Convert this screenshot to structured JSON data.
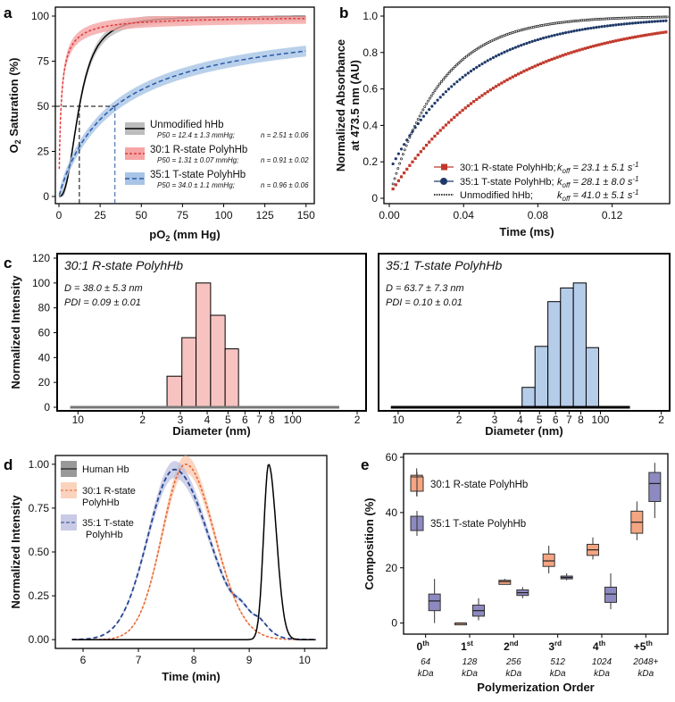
{
  "chart_data": [
    {
      "panel": "a",
      "type": "line",
      "xlabel": "pO2 (mm Hg)",
      "ylabel": "O2 Saturation (%)",
      "xlim": [
        0,
        155
      ],
      "ylim": [
        0,
        100
      ],
      "xticks": [
        0,
        25,
        50,
        75,
        100,
        125,
        150
      ],
      "yticks": [
        0,
        25,
        50,
        75,
        100
      ],
      "p50_reference_y": 50,
      "series": [
        {
          "name": "Unmodified hHb",
          "p50": 12.4,
          "n": 2.51,
          "color": "#000000",
          "legend_line1": "Unmodified hHb",
          "legend_sub": "P50 = 12.4 ± 1.3 mmHg;",
          "legend_n": "n = 2.51 ± 0.06"
        },
        {
          "name": "30:1 R-state PolyhHb",
          "p50": 1.31,
          "n": 0.91,
          "color": "#e23a3a",
          "legend_line1": "30:1 R-state PolyhHb",
          "legend_sub": "P50 = 1.31 ± 0.07 mmHg;",
          "legend_n": "n = 0.91 ± 0.02"
        },
        {
          "name": "35:1 T-state PolyhHb",
          "p50": 34.0,
          "n": 0.96,
          "color": "#2a5aa8",
          "legend_line1": "35:1 T-state PolyhHb",
          "legend_sub": "P50 = 34.0 ± 1.1 mmHg;",
          "legend_n": "n = 0.96 ± 0.06"
        }
      ]
    },
    {
      "panel": "b",
      "type": "scatter",
      "xlabel": "Time (ms)",
      "ylabel_line1": "Normalized Absorbance",
      "ylabel_line2": "at 473.5 nm (AU)",
      "xlim": [
        0,
        0.15
      ],
      "ylim": [
        0,
        1
      ],
      "xticks": [
        0.0,
        0.04,
        0.08,
        0.12
      ],
      "xticklabels": [
        "0.00",
        "0.04",
        "0.08",
        "0.12"
      ],
      "yticks": [
        0,
        0.2,
        0.4,
        0.6,
        0.8,
        1.0
      ],
      "yticklabels": [
        "0",
        "0.2",
        "0.4",
        "0.6",
        "0.8",
        "1.0"
      ],
      "series": [
        {
          "name": "30:1 R-state PolyhHb;",
          "koff": "k",
          "koff_sub": "off",
          "koff_val": "= 23.1 ± 5.1 s",
          "koff_exp": "-1",
          "rate": 16.2,
          "start": 0.02,
          "color": "#c0392b",
          "marker": "square"
        },
        {
          "name": "35:1 T-state PolyhHb;",
          "koff": "k",
          "koff_sub": "off",
          "koff_val": "= 28.1 ± 8.0 s",
          "koff_exp": "-1",
          "rate": 23.5,
          "start": 0.15,
          "color": "#1f3a68",
          "marker": "circle"
        },
        {
          "name": "Unmodified hHb;",
          "koff": "k",
          "koff_sub": "off",
          "koff_val": "= 41.0 ± 5.1 s",
          "koff_exp": "-1",
          "rate": 36.0,
          "start": 0.01,
          "color": "#222222",
          "marker": "diamond"
        }
      ]
    },
    {
      "panel": "c-left",
      "type": "bar",
      "title": "30:1 R-state PolyhHb",
      "annot1": "D = 38.0 ± 5.3 nm",
      "annot2": "PDI = 0.09 ± 0.01",
      "xlabel": "Diameter (nm)",
      "ylabel": "Normalized Intensity",
      "xscale": "log",
      "xlim": [
        8,
        220
      ],
      "ylim": [
        0,
        120
      ],
      "yticks": [
        0,
        20,
        40,
        60,
        80,
        100,
        120
      ],
      "xticks": [
        10,
        20,
        30,
        40,
        50,
        60,
        70,
        80,
        100,
        200
      ],
      "xticklabels": [
        "10",
        "2",
        "3",
        "4",
        "5",
        "6",
        "7",
        "8",
        "100",
        "2"
      ],
      "bins": [
        {
          "lo": 26.0,
          "hi": 30.5,
          "value": 25
        },
        {
          "lo": 30.5,
          "hi": 35.5,
          "value": 56
        },
        {
          "lo": 35.5,
          "hi": 41.5,
          "value": 100
        },
        {
          "lo": 41.5,
          "hi": 48.5,
          "value": 74
        },
        {
          "lo": 48.5,
          "hi": 56.0,
          "value": 47
        }
      ],
      "baseline": [
        9.2,
        165
      ],
      "color": "#f7c3c1"
    },
    {
      "panel": "c-right",
      "type": "bar",
      "title": "35:1 T-state PolyhHb",
      "annot1": "D = 63.7 ± 7.3 nm",
      "annot2": "PDI = 0.10 ± 0.01",
      "xlabel": "Diameter (nm)",
      "xscale": "log",
      "xlim": [
        8,
        220
      ],
      "ylim": [
        0,
        120
      ],
      "xticks": [
        10,
        20,
        30,
        40,
        50,
        60,
        70,
        80,
        100,
        200
      ],
      "xticklabels": [
        "10",
        "2",
        "3",
        "4",
        "5",
        "6",
        "7",
        "8",
        "100",
        "2"
      ],
      "bins": [
        {
          "lo": 41.0,
          "hi": 47.5,
          "value": 16
        },
        {
          "lo": 47.5,
          "hi": 55.0,
          "value": 49
        },
        {
          "lo": 55.0,
          "hi": 63.5,
          "value": 85
        },
        {
          "lo": 63.5,
          "hi": 73.5,
          "value": 96
        },
        {
          "lo": 73.5,
          "hi": 85.0,
          "value": 100
        },
        {
          "lo": 85.0,
          "hi": 98.0,
          "value": 48
        }
      ],
      "baseline": [
        9.2,
        140
      ],
      "color": "#b5cde9"
    },
    {
      "panel": "d",
      "type": "line",
      "xlabel": "Time (min)",
      "ylabel": "Normalized Intensity",
      "xlim": [
        5.5,
        10.4
      ],
      "ylim": [
        -0.05,
        1.05
      ],
      "xticks": [
        6,
        7,
        8,
        9,
        10
      ],
      "yticks": [
        0,
        0.25,
        0.5,
        0.75,
        1.0
      ],
      "yticklabels": [
        "0.00",
        "0.25",
        "0.50",
        "0.75",
        "1.00"
      ],
      "series": [
        {
          "name": "Human Hb",
          "color": "#000000"
        },
        {
          "name_line1": "30:1 R-state",
          "name_line2": "PolyhHb",
          "color": "#e8612c"
        },
        {
          "name_line1": "35:1 T-state",
          "name_line2": "PolyhHb",
          "color": "#23468f"
        }
      ]
    },
    {
      "panel": "e",
      "type": "box",
      "xlabel": "Polymerization Order",
      "ylabel": "Composition (%)",
      "ylim": [
        -4,
        60
      ],
      "yticks": [
        0,
        20,
        40,
        60
      ],
      "categories": [
        {
          "label": "0",
          "sup": "th",
          "mw": "64",
          "unit": "kDa"
        },
        {
          "label": "1",
          "sup": "st",
          "mw": "128",
          "unit": "kDa"
        },
        {
          "label": "2",
          "sup": "nd",
          "mw": "256",
          "unit": "kDa"
        },
        {
          "label": "3",
          "sup": "rd",
          "mw": "512",
          "unit": "kDa"
        },
        {
          "label": "4",
          "sup": "th",
          "mw": "1024",
          "unit": "kDa"
        },
        {
          "label": "+5",
          "sup": "th",
          "mw": "2048+",
          "unit": "kDa"
        }
      ],
      "series": [
        {
          "name": "30:1 R-state PolyhHb",
          "color": "#f4a582",
          "boxes": [
            {
              "min": 46,
              "q1": 48.5,
              "med": 51,
              "q3": 53.5,
              "max": 56
            },
            {
              "min": 0,
              "q1": 0,
              "med": 0,
              "q3": 0,
              "max": 0
            },
            {
              "min": 14,
              "q1": 14,
              "med": 15,
              "q3": 15.5,
              "max": 16
            },
            {
              "min": 18,
              "q1": 20.5,
              "med": 22.5,
              "q3": 25,
              "max": 28
            },
            {
              "min": 23,
              "q1": 24.5,
              "med": 26.5,
              "q3": 28.5,
              "max": 31
            },
            {
              "min": 30,
              "q1": 32.5,
              "med": 36.5,
              "q3": 40.5,
              "max": 44
            }
          ]
        },
        {
          "name": "35:1 T-state PolyhHb",
          "color": "#8c8ac0",
          "boxes": [
            {
              "min": 0,
              "q1": 4.5,
              "med": 8,
              "q3": 10.5,
              "max": 16
            },
            {
              "min": 1,
              "q1": 2.5,
              "med": 4.5,
              "q3": 6.5,
              "max": 9
            },
            {
              "min": 9,
              "q1": 10,
              "med": 11,
              "q3": 12,
              "max": 13
            },
            {
              "min": 15.5,
              "q1": 16,
              "med": 16.5,
              "q3": 17,
              "max": 18
            },
            {
              "min": 5,
              "q1": 7.5,
              "med": 10.5,
              "q3": 13,
              "max": 18
            },
            {
              "min": 38,
              "q1": 44,
              "med": 50.5,
              "q3": 54.5,
              "max": 58
            }
          ]
        }
      ]
    }
  ],
  "panel_labels": [
    "a",
    "b",
    "c",
    "d",
    "e"
  ]
}
